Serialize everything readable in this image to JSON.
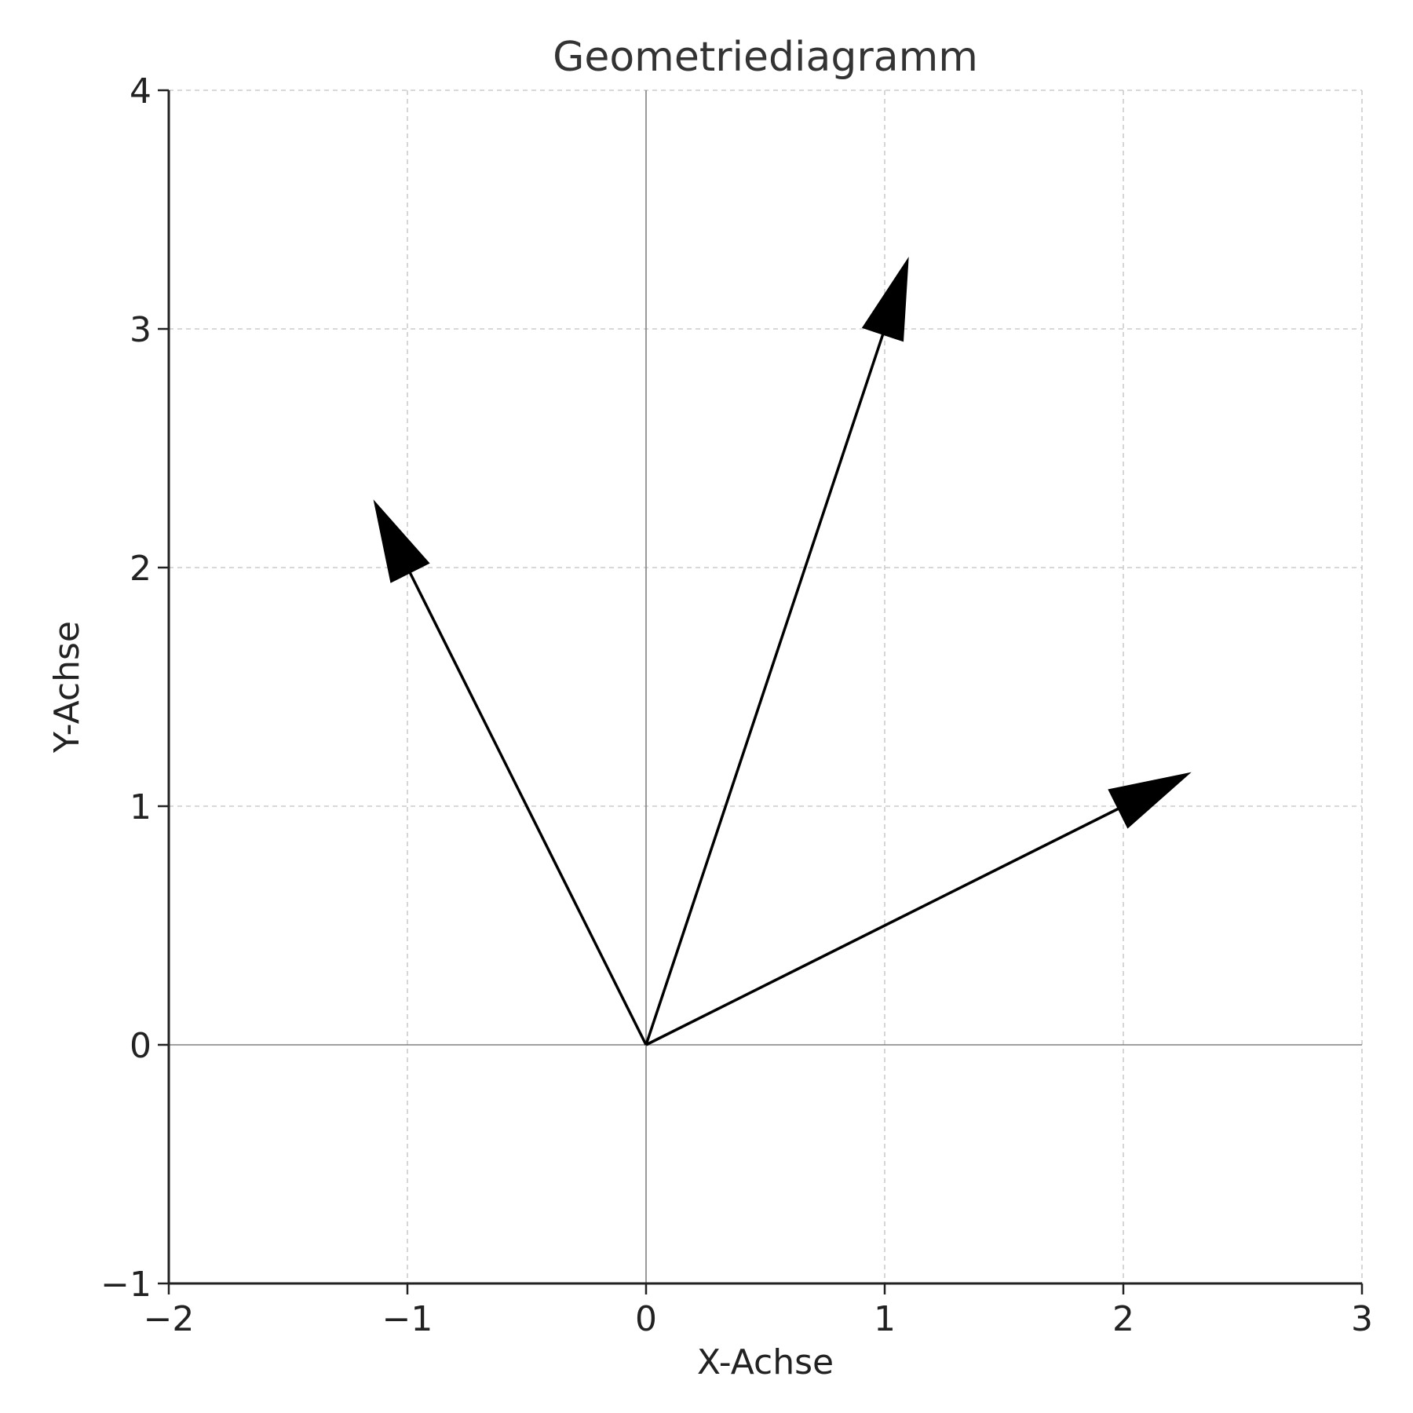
{
  "chart_data": {
    "type": "vector",
    "title": "Geometriediagramm",
    "xlabel": "X-Achse",
    "ylabel": "Y-Achse",
    "xlim": [
      -2,
      3
    ],
    "ylim": [
      -1,
      4
    ],
    "xticks": [
      -2,
      -1,
      0,
      1,
      2,
      3
    ],
    "yticks": [
      -1,
      0,
      1,
      2,
      3,
      4
    ],
    "xtick_labels": [
      "−2",
      "−1",
      "0",
      "1",
      "2",
      "3"
    ],
    "ytick_labels": [
      "−1",
      "0",
      "1",
      "2",
      "3",
      "4"
    ],
    "grid": true,
    "vectors": [
      {
        "from": [
          0,
          0
        ],
        "to": [
          2,
          1
        ]
      },
      {
        "from": [
          0,
          0
        ],
        "to": [
          1,
          3
        ]
      },
      {
        "from": [
          0,
          0
        ],
        "to": [
          -1,
          2
        ]
      }
    ],
    "colors": {
      "vector": "#000000",
      "grid": "#cccccc",
      "zero_line": "#808080",
      "spine": "#222222"
    }
  }
}
